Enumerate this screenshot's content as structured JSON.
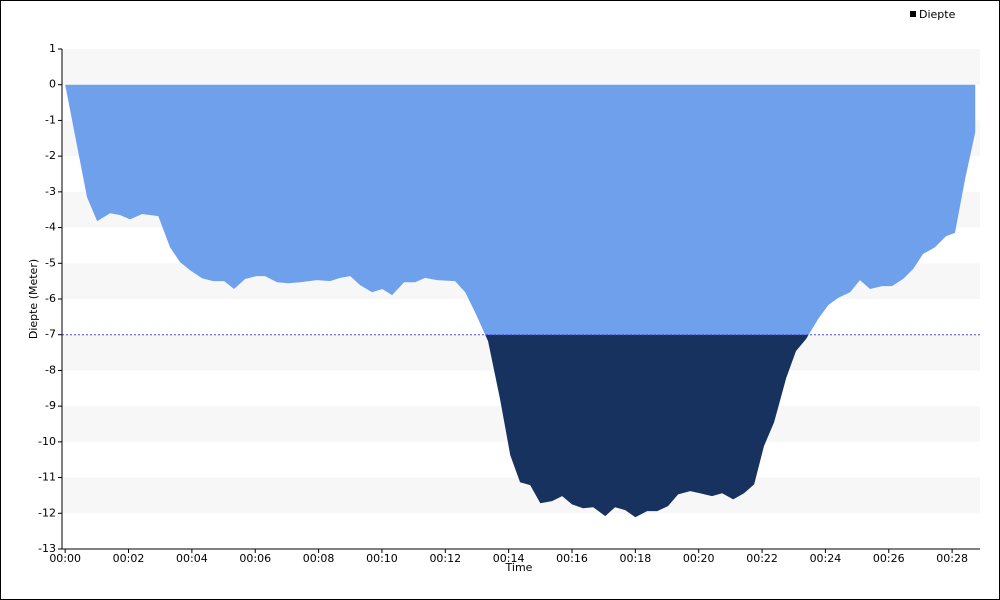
{
  "chart_data": {
    "type": "area",
    "x_label": "Time",
    "y_label": "Diepte (Meter)",
    "x": [
      0,
      0.69,
      1.01,
      1.42,
      1.74,
      2.05,
      2.43,
      2.94,
      3.31,
      3.63,
      3.95,
      4.32,
      4.67,
      5.02,
      5.33,
      5.68,
      6.03,
      6.31,
      6.69,
      7.04,
      7.42,
      7.95,
      8.36,
      8.68,
      9.0,
      9.31,
      9.69,
      10.01,
      10.32,
      10.7,
      11.05,
      11.36,
      11.74,
      12.31,
      12.63,
      12.94,
      13.35,
      13.73,
      14.05,
      14.36,
      14.68,
      15.0,
      15.37,
      15.69,
      16.0,
      16.35,
      16.67,
      17.05,
      17.36,
      17.68,
      18.0,
      18.37,
      18.69,
      19.03,
      19.35,
      19.73,
      20.04,
      20.42,
      20.74,
      21.09,
      21.43,
      21.75,
      22.06,
      22.38,
      22.76,
      23.07,
      23.39,
      23.77,
      24.09,
      24.4,
      24.78,
      25.09,
      25.41,
      25.79,
      26.1,
      26.45,
      26.77,
      27.08,
      27.46,
      27.81,
      28.09,
      28.41,
      28.73
    ],
    "series": [
      {
        "name": "Diepte",
        "color": "#6fa0ec",
        "below_color": "#17325e",
        "legend_color": "#000000",
        "values": [
          0,
          -3.15,
          -3.82,
          -3.6,
          -3.65,
          -3.77,
          -3.62,
          -3.68,
          -4.55,
          -4.97,
          -5.2,
          -5.42,
          -5.5,
          -5.5,
          -5.72,
          -5.44,
          -5.36,
          -5.36,
          -5.53,
          -5.56,
          -5.53,
          -5.47,
          -5.5,
          -5.41,
          -5.36,
          -5.61,
          -5.81,
          -5.72,
          -5.89,
          -5.53,
          -5.53,
          -5.41,
          -5.47,
          -5.5,
          -5.81,
          -6.37,
          -7.18,
          -8.81,
          -10.37,
          -11.13,
          -11.21,
          -11.72,
          -11.66,
          -11.52,
          -11.75,
          -11.86,
          -11.83,
          -12.08,
          -11.83,
          -11.91,
          -12.11,
          -11.94,
          -11.94,
          -11.8,
          -11.47,
          -11.38,
          -11.44,
          -11.52,
          -11.44,
          -11.61,
          -11.44,
          -11.19,
          -10.12,
          -9.45,
          -8.22,
          -7.46,
          -7.12,
          -6.56,
          -6.17,
          -5.97,
          -5.81,
          -5.47,
          -5.72,
          -5.64,
          -5.64,
          -5.44,
          -5.16,
          -4.74,
          -4.55,
          -4.24,
          -4.15,
          -2.64,
          -1.33
        ]
      }
    ],
    "threshold": -7,
    "threshold_color": "#4a4ae8",
    "xlim": [
      -0.1,
      28.88
    ],
    "ylim": [
      -13,
      1
    ],
    "xticks": [
      {
        "value": 0,
        "label": "00:00"
      },
      {
        "value": 2,
        "label": "00:02"
      },
      {
        "value": 4,
        "label": "00:04"
      },
      {
        "value": 6,
        "label": "00:06"
      },
      {
        "value": 8,
        "label": "00:08"
      },
      {
        "value": 10,
        "label": "00:10"
      },
      {
        "value": 12,
        "label": "00:12"
      },
      {
        "value": 14,
        "label": "00:14"
      },
      {
        "value": 16,
        "label": "00:16"
      },
      {
        "value": 18,
        "label": "00:18"
      },
      {
        "value": 20,
        "label": "00:20"
      },
      {
        "value": 22,
        "label": "00:22"
      },
      {
        "value": 24,
        "label": "00:24"
      },
      {
        "value": 26,
        "label": "00:26"
      },
      {
        "value": 28,
        "label": "00:28"
      }
    ],
    "yticks": [
      1,
      0,
      -1,
      -2,
      -3,
      -4,
      -5,
      -6,
      -7,
      -8,
      -9,
      -10,
      -11,
      -12,
      -13
    ],
    "legend": "top-right",
    "striped_background": true
  }
}
